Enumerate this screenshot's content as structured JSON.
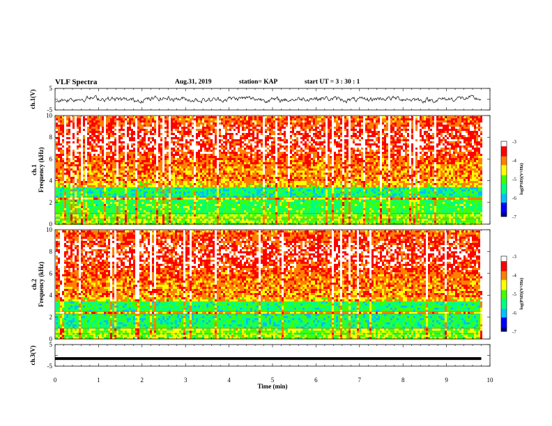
{
  "header": {
    "title": "VLF Spectra",
    "date": "Aug.31, 2019",
    "station": "station= KAP",
    "start": "start  UT =   3  : 30 : 1"
  },
  "chart_data": [
    {
      "type": "line",
      "panel": "ch1-waveform",
      "ylabel": "ch.1(V)",
      "yticks": [
        "5",
        "-5"
      ],
      "ylim": [
        -5,
        5
      ],
      "xlim": [
        0,
        10
      ],
      "note_series": "dense noisy black waveform spanning about -2 to 2 V"
    },
    {
      "type": "heatmap",
      "panel": "ch1-spectrogram",
      "ylabel": "ch.1\nFrequency (kHz)",
      "ylabel_line1": "ch.1",
      "ylabel_line2": "Frequency (kHz)",
      "yticks": [
        "0",
        "2",
        "4",
        "6",
        "8",
        "10"
      ],
      "ylim": [
        0,
        10
      ],
      "xlim": [
        0,
        10
      ],
      "colorbar": {
        "label": "log(PSD)(V²/Hz)",
        "ticks": [
          "-3",
          "-4",
          "-5",
          "-6",
          "-7"
        ],
        "range": [
          -7,
          -3
        ]
      },
      "bands": [
        {
          "f_from": 4.0,
          "f_to": 10.0,
          "level": "high (red/yellow)"
        },
        {
          "f_from": 2.5,
          "f_to": 3.5,
          "level": "mid (green/cyan)"
        },
        {
          "f_from": 1.0,
          "f_to": 2.5,
          "level": "mid-low (cyan/green)"
        },
        {
          "f_from": 0.0,
          "f_to": 1.0,
          "level": "mixed"
        }
      ]
    },
    {
      "type": "heatmap",
      "panel": "ch2-spectrogram",
      "ylabel_line1": "ch.2",
      "ylabel_line2": "Frequency (kHz)",
      "yticks": [
        "0",
        "2",
        "4",
        "6",
        "8",
        "10"
      ],
      "ylim": [
        0,
        10
      ],
      "xlim": [
        0,
        10
      ],
      "colorbar": {
        "label": "log(PSD)(V²/Hz)",
        "ticks": [
          "-3",
          "-4",
          "-5",
          "-6",
          "-7"
        ],
        "range": [
          -7,
          -3
        ]
      }
    },
    {
      "type": "line",
      "panel": "ch3-waveform",
      "ylabel": "ch.3(V)",
      "yticks": [
        "5",
        "-5"
      ],
      "ylim": [
        -5,
        5
      ],
      "xlim": [
        0,
        10
      ],
      "series": [
        {
          "values_constant": -1.5
        }
      ]
    }
  ],
  "xaxis": {
    "label": "Time (min)",
    "ticks": [
      "0",
      "1",
      "2",
      "3",
      "4",
      "5",
      "6",
      "7",
      "8",
      "9",
      "10"
    ],
    "range": [
      0,
      10
    ],
    "data_end": 9.8
  },
  "colors": {
    "scale": [
      "#000080",
      "#0000ff",
      "#00c0ff",
      "#00ff80",
      "#40ff00",
      "#ffff00",
      "#ff8000",
      "#ff0000",
      "#ffffff"
    ]
  }
}
